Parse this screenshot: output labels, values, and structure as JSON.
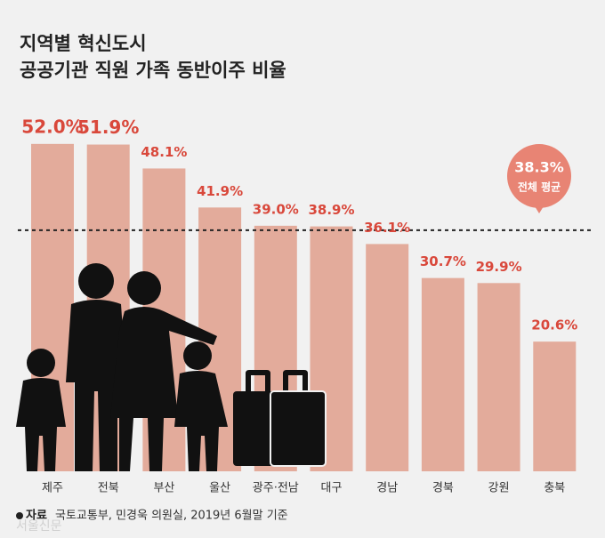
{
  "chart_data": {
    "type": "bar",
    "title_lines": [
      "지역별 혁신도시",
      "공공기관 직원 가족 동반이주 비율"
    ],
    "categories": [
      "제주",
      "전북",
      "부산",
      "울산",
      "광주·전남",
      "대구",
      "경남",
      "경북",
      "강원",
      "충북"
    ],
    "values": [
      52.0,
      51.9,
      48.1,
      41.9,
      39.0,
      38.9,
      36.1,
      30.7,
      29.9,
      20.6
    ],
    "value_labels": [
      "52.0%",
      "51.9%",
      "48.1%",
      "41.9%",
      "39.0%",
      "38.9%",
      "36.1%",
      "30.7%",
      "29.9%",
      "20.6%"
    ],
    "color": "#e3ab9b",
    "average": {
      "value": 38.3,
      "label": "38.3%",
      "text": "전체 평균"
    },
    "source_label": "자료",
    "source_text": "국토교통부, 민경욱 의원실, 2019년 6월말 기준",
    "watermark": "서울신문"
  }
}
